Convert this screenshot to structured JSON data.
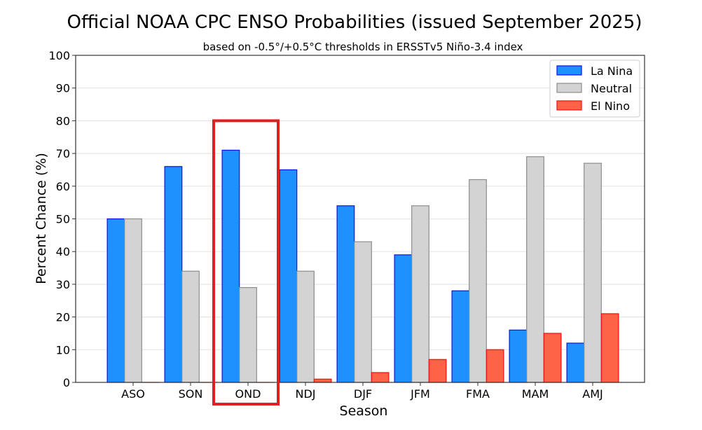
{
  "chart_data": {
    "type": "bar",
    "title": "Official NOAA CPC ENSO Probabilities (issued September 2025)",
    "subtitle": "based on -0.5°/+0.5°C thresholds in ERSSTv5 Niño-3.4 index",
    "xlabel": "Season",
    "ylabel": "Percent Chance (%)",
    "ylim": [
      0,
      100
    ],
    "yticks": [
      0,
      10,
      20,
      30,
      40,
      50,
      60,
      70,
      80,
      90,
      100
    ],
    "grid": true,
    "legend_position": "top-right",
    "categories": [
      "ASO",
      "SON",
      "OND",
      "NDJ",
      "DJF",
      "JFM",
      "FMA",
      "MAM",
      "AMJ"
    ],
    "series": [
      {
        "name": "La Nina",
        "color": "#1E90FF",
        "edge": "#1010F0",
        "values": [
          50,
          66,
          71,
          65,
          54,
          39,
          28,
          16,
          12
        ]
      },
      {
        "name": "Neutral",
        "color": "#D3D3D3",
        "edge": "#8C8C8C",
        "values": [
          50,
          34,
          29,
          34,
          43,
          54,
          62,
          69,
          67
        ]
      },
      {
        "name": "El Nino",
        "color": "#FF6347",
        "edge": "#F01010",
        "values": [
          0,
          0,
          0,
          1,
          3,
          7,
          10,
          15,
          21
        ]
      }
    ],
    "highlight": {
      "category": "OND",
      "color": "#E02020"
    }
  }
}
